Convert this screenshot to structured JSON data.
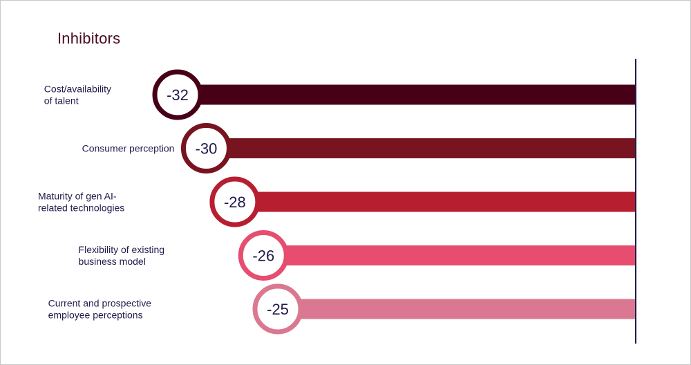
{
  "title": "Inhibitors",
  "chart_data": {
    "type": "bar",
    "orientation": "horizontal",
    "title": "Inhibitors",
    "categories": [
      [
        "Cost/availability",
        "of talent"
      ],
      [
        "Consumer perception"
      ],
      [
        "Maturity of gen AI-",
        "related technologies"
      ],
      [
        "Flexibility of existing",
        "business model"
      ],
      [
        "Current and prospective",
        "employee perceptions"
      ]
    ],
    "values": [
      -32,
      -30,
      -28,
      -26,
      -25
    ],
    "data_labels": [
      "-32",
      "-30",
      "-28",
      "-26",
      "-25"
    ],
    "colors": [
      "#470016",
      "#78141f",
      "#b71e30",
      "#e64d6f",
      "#db7891"
    ],
    "xlim": [
      -35,
      0
    ],
    "grid": false,
    "legend": "none"
  }
}
